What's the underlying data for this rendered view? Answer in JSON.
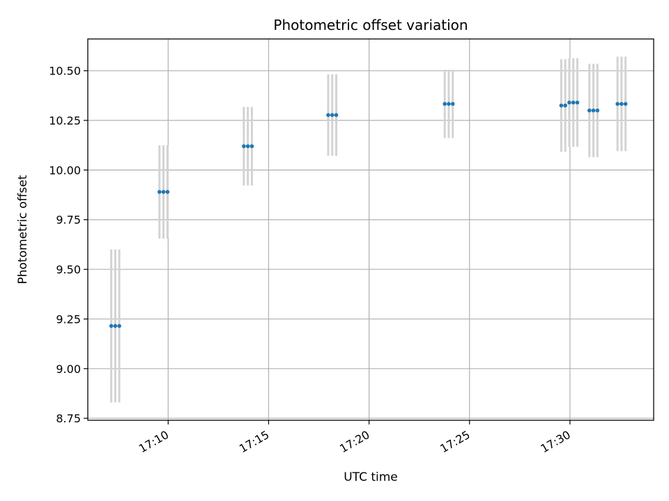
{
  "chart_data": {
    "type": "scatter",
    "title": "Photometric offset variation",
    "xlabel": "UTC time",
    "ylabel": "Photometric offset",
    "x_axis": {
      "kind": "time",
      "range": [
        "17:06:00",
        "17:34:10"
      ],
      "ticks": [
        "17:10",
        "17:15",
        "17:20",
        "17:25",
        "17:30"
      ]
    },
    "y_axis": {
      "range": [
        8.74,
        10.66
      ],
      "ticks": [
        8.75,
        9.0,
        9.25,
        9.5,
        9.75,
        10.0,
        10.25,
        10.5
      ],
      "tick_labels": [
        "8.75",
        "9.00",
        "9.25",
        "9.50",
        "9.75",
        "10.00",
        "10.25",
        "10.50"
      ]
    },
    "grid": true,
    "colors": {
      "points": "#1f77b4",
      "errorbars": "#d3d3d3",
      "grid": "#b0b0b0"
    },
    "series": [
      {
        "points": [
          {
            "t": "17:07:10",
            "y": 9.215,
            "err": 0.385
          },
          {
            "t": "17:07:22",
            "y": 9.215,
            "err": 0.385
          },
          {
            "t": "17:07:34",
            "y": 9.215,
            "err": 0.385
          },
          {
            "t": "17:09:34",
            "y": 9.89,
            "err": 0.235
          },
          {
            "t": "17:09:46",
            "y": 9.89,
            "err": 0.235
          },
          {
            "t": "17:09:58",
            "y": 9.89,
            "err": 0.235
          },
          {
            "t": "17:13:46",
            "y": 10.12,
            "err": 0.198
          },
          {
            "t": "17:13:58",
            "y": 10.12,
            "err": 0.198
          },
          {
            "t": "17:14:10",
            "y": 10.12,
            "err": 0.198
          },
          {
            "t": "17:17:58",
            "y": 10.277,
            "err": 0.205
          },
          {
            "t": "17:18:10",
            "y": 10.277,
            "err": 0.205
          },
          {
            "t": "17:18:22",
            "y": 10.277,
            "err": 0.205
          },
          {
            "t": "17:23:46",
            "y": 10.333,
            "err": 0.172
          },
          {
            "t": "17:23:58",
            "y": 10.333,
            "err": 0.172
          },
          {
            "t": "17:24:10",
            "y": 10.333,
            "err": 0.172
          },
          {
            "t": "17:29:34",
            "y": 10.325,
            "err": 0.233
          },
          {
            "t": "17:29:46",
            "y": 10.325,
            "err": 0.233
          },
          {
            "t": "17:29:58",
            "y": 10.34,
            "err": 0.223
          },
          {
            "t": "17:30:10",
            "y": 10.34,
            "err": 0.223
          },
          {
            "t": "17:30:22",
            "y": 10.34,
            "err": 0.223
          },
          {
            "t": "17:30:58",
            "y": 10.3,
            "err": 0.235
          },
          {
            "t": "17:31:10",
            "y": 10.3,
            "err": 0.235
          },
          {
            "t": "17:31:22",
            "y": 10.3,
            "err": 0.235
          },
          {
            "t": "17:32:22",
            "y": 10.333,
            "err": 0.238
          },
          {
            "t": "17:32:34",
            "y": 10.333,
            "err": 0.238
          },
          {
            "t": "17:32:46",
            "y": 10.333,
            "err": 0.238
          }
        ]
      }
    ]
  }
}
